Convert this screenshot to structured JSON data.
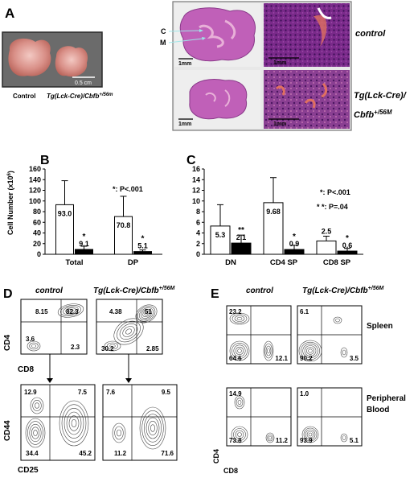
{
  "panels": {
    "A": {
      "letter": "A",
      "photo_scale": "0.5 cm",
      "photo_caption_control": "Control",
      "photo_caption_tg": "Tg(Lck-Cre)/Cbfb",
      "photo_caption_tg_sup": "+/56m",
      "cortex_label": "C",
      "medulla_label": "M",
      "scale_1mm": "1mm",
      "row_label_control": "control",
      "row_label_tg_line1": "Tg(Lck-Cre)/",
      "row_label_tg_line2": "Cbfb",
      "row_label_tg_sup": "+/56M"
    },
    "B": {
      "letter": "B",
      "ylabel": "Cell Number (x10",
      "ylabel_sup": "6",
      "ylabel_end": ")",
      "pnote": "*: P<.001"
    },
    "C": {
      "letter": "C",
      "pnote1": "*: P<.001",
      "pnote2": "* *: P=.04"
    },
    "D": {
      "letter": "D",
      "col_control": "control",
      "col_tg": "Tg(Lck-Cre)/Cbfb",
      "col_tg_sup": "+/56M",
      "top_y": "CD4",
      "top_x": "CD8",
      "bottom_y": "CD44",
      "bottom_x": "CD25",
      "control_top": [
        "8.15",
        "82.3",
        "3.6",
        "2.3"
      ],
      "tg_top": [
        "4.38",
        "51",
        "30.2",
        "2.85"
      ],
      "control_bottom": [
        "12.9",
        "7.5",
        "34.4",
        "45.2"
      ],
      "tg_bottom": [
        "7.6",
        "9.5",
        "11.2",
        "71.6"
      ]
    },
    "E": {
      "letter": "E",
      "col_control": "control",
      "col_tg": "Tg(Lck-Cre)/Cbfb",
      "col_tg_sup": "+/56M",
      "row_spleen": "Spleen",
      "row_blood_line1": "Peripheral",
      "row_blood_line2": "Blood",
      "y_label": "CD4",
      "x_label": "CD8",
      "control_spleen": [
        "23.2",
        "64.6",
        "12.1"
      ],
      "tg_spleen": [
        "6.1",
        "90.2",
        "3.5"
      ],
      "control_blood": [
        "14.9",
        "73.8",
        "11.2"
      ],
      "tg_blood": [
        "1.0",
        "93.9",
        "5.1"
      ]
    }
  },
  "chart_data": [
    {
      "type": "bar",
      "title": "",
      "ylabel": "Cell Number (x10^6)",
      "categories": [
        "Total",
        "DP"
      ],
      "ylim": [
        0,
        160
      ],
      "yticks": [
        0,
        20,
        40,
        60,
        80,
        100,
        120,
        140,
        160
      ],
      "series": [
        {
          "name": "control",
          "values": [
            93.0,
            70.8
          ],
          "errors": [
            45,
            38
          ],
          "color": "#ffffff"
        },
        {
          "name": "Tg(Lck-Cre)/Cbfb+/56m",
          "values": [
            9.1,
            5.1
          ],
          "errors": [
            6,
            3
          ],
          "color": "#000000"
        }
      ],
      "value_labels": [
        [
          "93.0",
          "70.8"
        ],
        [
          "9.1",
          "5.1"
        ]
      ],
      "significance": [
        [
          "",
          ""
        ],
        [
          "*",
          "*"
        ]
      ],
      "annotation": "*: P<.001"
    },
    {
      "type": "bar",
      "title": "",
      "ylabel": "",
      "categories": [
        "DN",
        "CD4 SP",
        "CD8 SP"
      ],
      "ylim": [
        0,
        16
      ],
      "yticks": [
        0,
        2,
        4,
        6,
        8,
        10,
        12,
        14,
        16
      ],
      "series": [
        {
          "name": "control",
          "values": [
            5.3,
            9.68,
            2.5
          ],
          "errors": [
            4.0,
            4.7,
            0.9
          ],
          "color": "#ffffff"
        },
        {
          "name": "Tg(Lck-Cre)/Cbfb+/56m",
          "values": [
            2.1,
            0.9,
            0.6
          ],
          "errors": [
            1.5,
            0.8,
            0.5
          ],
          "color": "#000000"
        }
      ],
      "value_labels": [
        [
          "5.3",
          "9.68",
          "2.5"
        ],
        [
          "2.1",
          "0.9",
          "0.6"
        ]
      ],
      "significance": [
        [
          "",
          "",
          ""
        ],
        [
          "**",
          "*",
          "*"
        ]
      ],
      "annotation": [
        "*: P<.001",
        "* *: P=.04"
      ]
    }
  ]
}
